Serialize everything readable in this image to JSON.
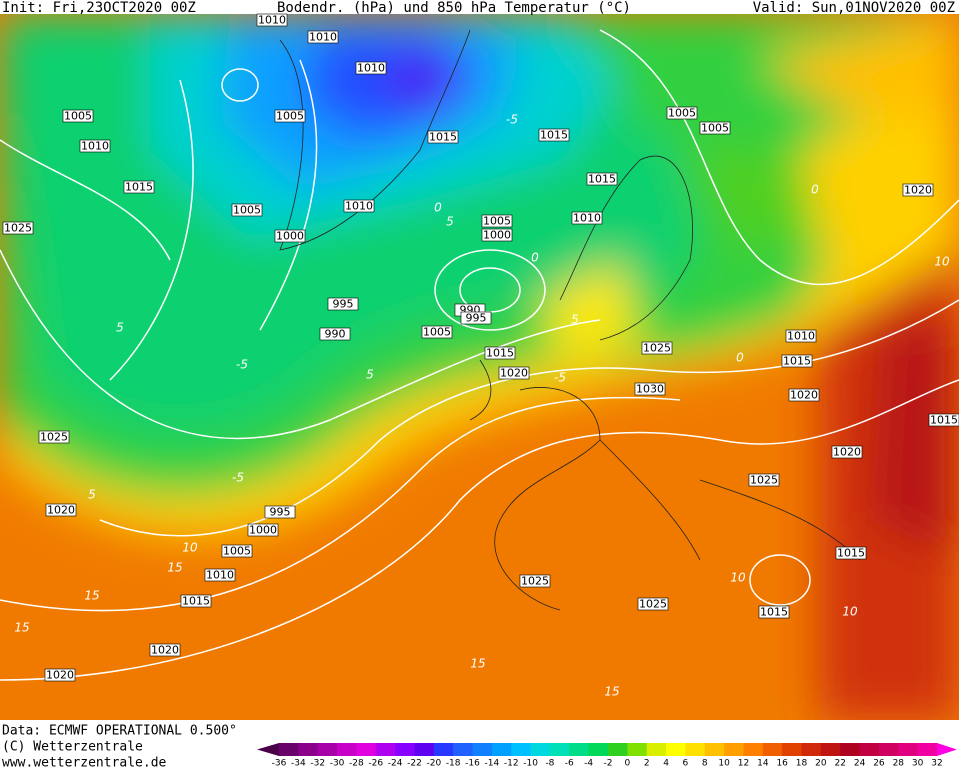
{
  "header": {
    "init": "Init: Fri,23OCT2020 00Z",
    "title": "Bodendr. (hPa) und 850 hPa Temperatur (°C)",
    "valid": "Valid: Sun,01NOV2020 00Z"
  },
  "isobar_labels": [
    "1010",
    "1010",
    "1010",
    "1005",
    "1010",
    "1005",
    "1015",
    "1015",
    "1005",
    "1005",
    "1015",
    "1005",
    "1010",
    "1015",
    "1020",
    "1025",
    "1000",
    "1005",
    "1000",
    "1010",
    "995",
    "990",
    "995",
    "990",
    "1005",
    "1015",
    "1025",
    "1010",
    "1015",
    "1020",
    "1030",
    "1020",
    "1015",
    "1025",
    "1020",
    "1025",
    "1020",
    "995",
    "1000",
    "1005",
    "1015",
    "1010",
    "1025",
    "1015",
    "1025",
    "1015",
    "1020",
    "1020"
  ],
  "temperature_labels": [
    "0",
    "-5",
    "5",
    "0",
    "-5",
    "5",
    "-5",
    "5",
    "0",
    "5",
    "5",
    "10",
    "10",
    "15",
    "15",
    "15",
    "10",
    "15",
    "10",
    "15",
    "0",
    "-5"
  ],
  "colorbar": {
    "ticks": [
      -36,
      -34,
      -32,
      -30,
      -28,
      -26,
      -24,
      -22,
      -20,
      -18,
      -16,
      -14,
      -12,
      -10,
      -8,
      -6,
      -4,
      -2,
      0,
      2,
      4,
      6,
      8,
      10,
      12,
      14,
      16,
      18,
      20,
      22,
      24,
      26,
      28,
      30,
      32
    ],
    "colors": [
      "#4a0048",
      "#6a006a",
      "#8a008a",
      "#a800a8",
      "#c800c8",
      "#e000e0",
      "#b000f0",
      "#8800ff",
      "#6000f0",
      "#2838ff",
      "#2060ff",
      "#1080ff",
      "#00a0ff",
      "#00c0ff",
      "#00d8e0",
      "#00e0b8",
      "#00dc88",
      "#00d858",
      "#30d020",
      "#80e000",
      "#d8f000",
      "#ffff00",
      "#ffe000",
      "#ffc000",
      "#ffa000",
      "#ff8000",
      "#f06000",
      "#e04000",
      "#d02808",
      "#c01410",
      "#b00020",
      "#c00040",
      "#d00060",
      "#e00080",
      "#f000a0",
      "#ff00e0"
    ]
  },
  "footer": {
    "data": "Data: ECMWF OPERATIONAL 0.500°",
    "copyright": "(C) Wetterzentrale",
    "url": "www.wetterzentrale.de"
  }
}
